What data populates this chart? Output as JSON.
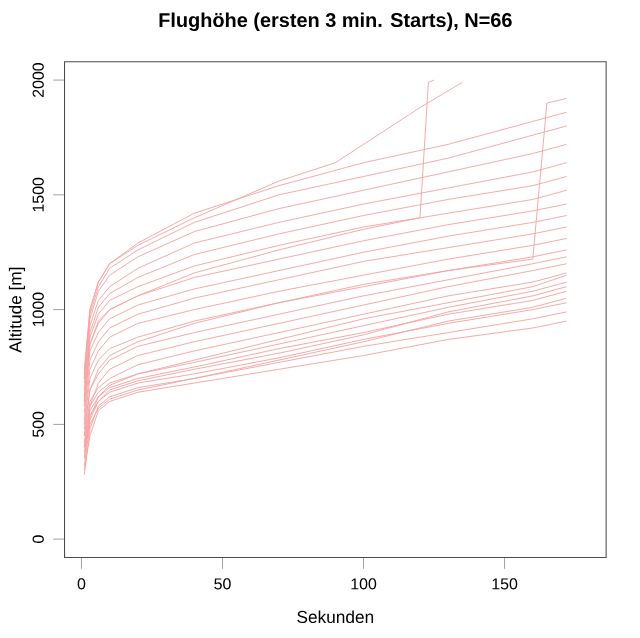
{
  "chart_data": {
    "type": "line",
    "title": "Flughöhe (ersten 3 min. Starts), N=66",
    "xlabel": "Sekunden",
    "ylabel": "Altitude [m]",
    "xlim": [
      -6,
      186
    ],
    "ylim": [
      -80,
      2080
    ],
    "xticks": [
      0,
      50,
      100,
      150
    ],
    "yticks": [
      0,
      500,
      1000,
      1500,
      2000
    ],
    "grid": false,
    "marker": "none",
    "line_style": "solid",
    "x": [
      1,
      3,
      6,
      10,
      20,
      40,
      70,
      100,
      130,
      160,
      172
    ],
    "series": [
      {
        "color": "#f6a3a3",
        "values": [
          300,
          450,
          560,
          600,
          640,
          680,
          740,
          800,
          870,
          920,
          950
        ]
      },
      {
        "color": "#f6a3a3",
        "values": [
          280,
          480,
          580,
          620,
          660,
          700,
          770,
          840,
          900,
          960,
          990
        ]
      },
      {
        "color": "#f6a3a3",
        "values": [
          350,
          520,
          600,
          640,
          680,
          720,
          790,
          870,
          940,
          1000,
          1030
        ]
      },
      {
        "color": "#f6a3a3",
        "values": [
          320,
          500,
          570,
          610,
          650,
          700,
          780,
          860,
          950,
          1010,
          1050
        ]
      },
      {
        "color": "#f6a3a3",
        "values": [
          400,
          560,
          620,
          660,
          700,
          750,
          830,
          900,
          980,
          1040,
          1080
        ]
      },
      {
        "color": "#f6a3a3",
        "values": [
          380,
          540,
          600,
          650,
          690,
          740,
          810,
          890,
          990,
          1060,
          1100
        ]
      },
      {
        "color": "#f6a3a3",
        "values": [
          420,
          580,
          640,
          680,
          720,
          770,
          850,
          930,
          1010,
          1080,
          1120
        ]
      },
      {
        "color": "#f6a3a3",
        "values": [
          360,
          530,
          620,
          670,
          720,
          780,
          870,
          960,
          1030,
          1100,
          1150
        ]
      },
      {
        "color": "#f6a3a3",
        "values": [
          450,
          600,
          660,
          700,
          760,
          820,
          900,
          980,
          1060,
          1120,
          1160
        ]
      },
      {
        "color": "#f6a3a3",
        "values": [
          400,
          580,
          680,
          740,
          800,
          860,
          940,
          1020,
          1100,
          1170,
          1200
        ]
      },
      {
        "color": "#f6a3a3",
        "values": [
          480,
          650,
          720,
          780,
          840,
          900,
          980,
          1060,
          1130,
          1200,
          1230
        ]
      },
      {
        "color": "#f6a3a3",
        "values": [
          500,
          700,
          780,
          830,
          880,
          950,
          1030,
          1100,
          1170,
          1230,
          1260
        ]
      },
      {
        "color": "#f6a3a3",
        "values": [
          520,
          740,
          820,
          880,
          940,
          1000,
          1080,
          1150,
          1220,
          1280,
          1310
        ]
      },
      {
        "color": "#f6a3a3",
        "values": [
          550,
          780,
          860,
          920,
          980,
          1050,
          1130,
          1210,
          1270,
          1330,
          1360
        ]
      },
      {
        "color": "#f6a3a3",
        "values": [
          580,
          820,
          900,
          960,
          1020,
          1090,
          1170,
          1250,
          1320,
          1380,
          1410
        ]
      },
      {
        "color": "#f6a3a3",
        "values": [
          600,
          850,
          940,
          1000,
          1060,
          1140,
          1220,
          1300,
          1370,
          1430,
          1460
        ]
      },
      {
        "color": "#f6a3a3",
        "values": [
          620,
          880,
          980,
          1040,
          1100,
          1190,
          1280,
          1360,
          1420,
          1480,
          1520
        ]
      },
      {
        "color": "#f6a3a3",
        "values": [
          650,
          900,
          1010,
          1070,
          1140,
          1240,
          1330,
          1410,
          1480,
          1540,
          1580
        ]
      },
      {
        "color": "#f6a3a3",
        "values": [
          680,
          930,
          1040,
          1100,
          1180,
          1290,
          1380,
          1460,
          1530,
          1600,
          1640
        ]
      },
      {
        "color": "#f6a3a3",
        "values": [
          700,
          960,
          1080,
          1150,
          1230,
          1340,
          1440,
          1520,
          1600,
          1680,
          1720
        ]
      },
      {
        "color": "#f6a3a3",
        "values": [
          720,
          980,
          1100,
          1180,
          1260,
          1380,
          1500,
          1580,
          1660,
          1760,
          1800
        ]
      },
      {
        "color": "#f6a3a3",
        "values": [
          740,
          1000,
          1120,
          1200,
          1290,
          1420,
          1540,
          1640,
          1720,
          1820,
          1860
        ]
      },
      {
        "color": "#f6a3a3",
        "x": [
          1,
          3,
          6,
          10,
          20,
          40,
          70,
          100,
          120,
          123,
          125
        ],
        "values": [
          600,
          850,
          950,
          1000,
          1060,
          1160,
          1260,
          1350,
          1400,
          1990,
          2000
        ]
      },
      {
        "color": "#f6a3a3",
        "x": [
          1,
          3,
          6,
          10,
          20,
          40,
          70,
          90,
          110,
          120,
          135
        ],
        "values": [
          700,
          1000,
          1120,
          1200,
          1280,
          1400,
          1560,
          1640,
          1800,
          1880,
          1990
        ]
      },
      {
        "color": "#f6a3a3",
        "x": [
          1,
          3,
          6,
          10,
          20,
          40,
          70,
          100,
          130,
          160,
          165,
          172
        ],
        "values": [
          450,
          650,
          740,
          800,
          860,
          940,
          1030,
          1110,
          1170,
          1220,
          1900,
          1920
        ]
      }
    ]
  }
}
